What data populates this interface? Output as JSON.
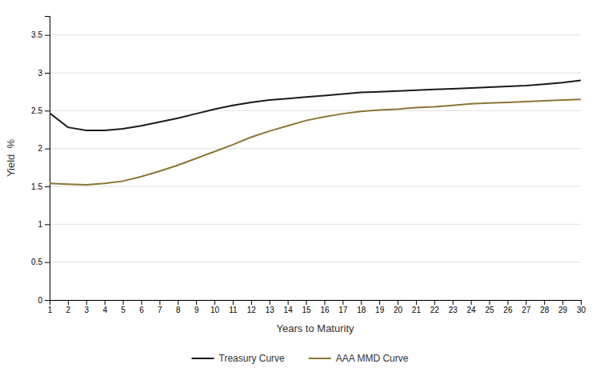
{
  "chart_data": {
    "type": "line",
    "xlabel": "Years to Maturity",
    "ylabel": "Yield  %",
    "x": [
      1,
      2,
      3,
      4,
      5,
      6,
      7,
      8,
      9,
      10,
      11,
      12,
      13,
      14,
      15,
      16,
      17,
      18,
      19,
      20,
      21,
      22,
      23,
      24,
      25,
      26,
      27,
      28,
      29,
      30
    ],
    "series": [
      {
        "name": "Treasury Curve",
        "color": "#1a1a1a",
        "values": [
          2.47,
          2.28,
          2.24,
          2.24,
          2.26,
          2.3,
          2.35,
          2.4,
          2.46,
          2.52,
          2.57,
          2.61,
          2.64,
          2.66,
          2.68,
          2.7,
          2.72,
          2.74,
          2.75,
          2.76,
          2.77,
          2.78,
          2.79,
          2.8,
          2.81,
          2.82,
          2.83,
          2.85,
          2.87,
          2.9
        ]
      },
      {
        "name": "AAA MMD Curve",
        "color": "#8B7536",
        "values": [
          1.54,
          1.53,
          1.52,
          1.54,
          1.57,
          1.63,
          1.7,
          1.78,
          1.87,
          1.96,
          2.05,
          2.15,
          2.23,
          2.3,
          2.37,
          2.42,
          2.46,
          2.49,
          2.51,
          2.52,
          2.54,
          2.55,
          2.57,
          2.59,
          2.6,
          2.61,
          2.62,
          2.63,
          2.64,
          2.65
        ]
      }
    ],
    "xlim": [
      1,
      30
    ],
    "xticks": [
      1,
      2,
      3,
      4,
      5,
      6,
      7,
      8,
      9,
      10,
      11,
      12,
      13,
      14,
      15,
      16,
      17,
      18,
      19,
      20,
      21,
      22,
      23,
      24,
      25,
      26,
      27,
      28,
      29,
      30
    ],
    "ylim": [
      0,
      3.75
    ],
    "yticks": [
      0,
      0.5,
      1,
      1.5,
      2,
      2.5,
      3,
      3.5
    ],
    "grid": true,
    "legend": "bottom"
  }
}
